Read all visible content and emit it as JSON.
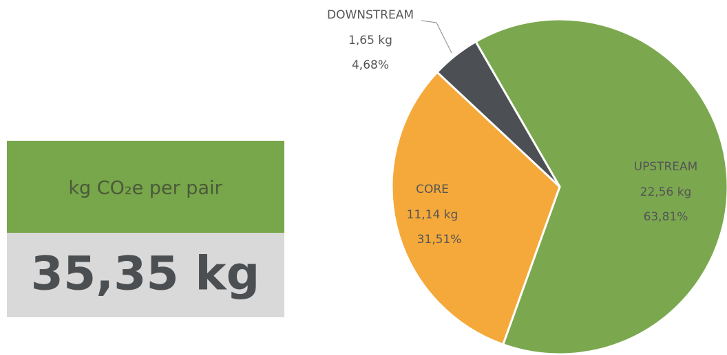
{
  "chart_data": {
    "type": "pie",
    "categories": [
      "UPSTREAM",
      "CORE",
      "DOWNSTREAM"
    ],
    "values": [
      63.81,
      31.51,
      4.68
    ],
    "value_labels": [
      "63,81%",
      "31,51%",
      "4,68%"
    ],
    "kg_labels": [
      "22,56 kg",
      "11,14 kg",
      "1,65 kg"
    ],
    "colors": [
      "#7ba84f",
      "#f5a93a",
      "#4c5054"
    ]
  },
  "panel": {
    "unit_label": "kg CO₂e per pair",
    "total": "35,35 kg"
  }
}
